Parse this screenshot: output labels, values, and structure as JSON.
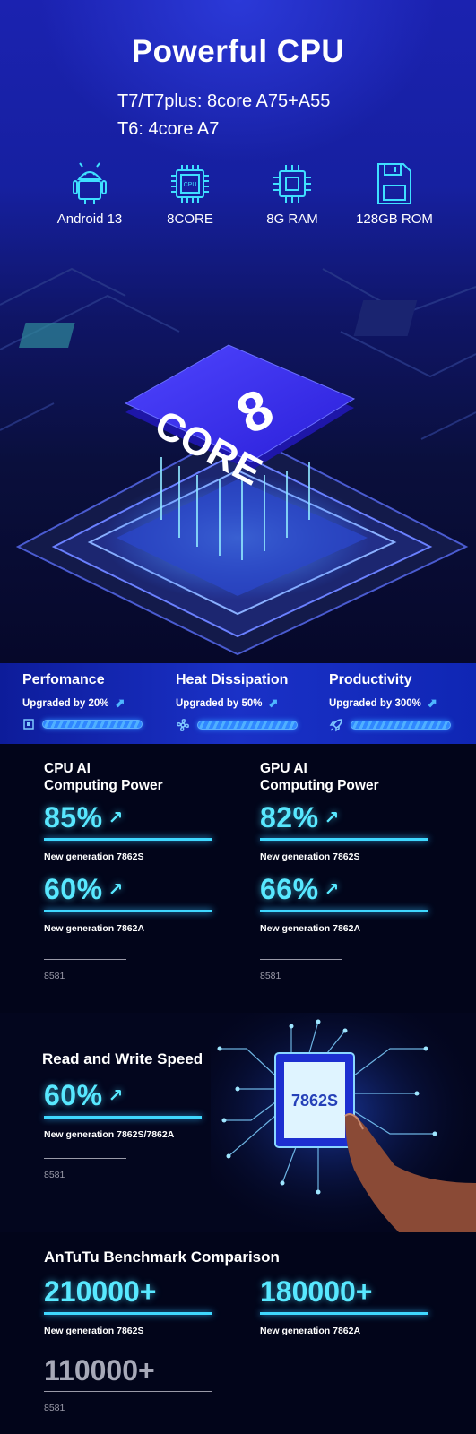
{
  "hero": {
    "title": "Powerful CPU",
    "line1": "T7/T7plus: 8core A75+A55",
    "line2": "T6: 4core A7",
    "specs": [
      {
        "icon": "android-icon",
        "label": "Android 13"
      },
      {
        "icon": "cpu-chip-icon",
        "label": "8CORE",
        "chip_text": "CPU"
      },
      {
        "icon": "ram-chip-icon",
        "label": "8G RAM"
      },
      {
        "icon": "sd-card-icon",
        "label": "128GB ROM"
      }
    ],
    "chip_number": "8",
    "chip_word": "CORE"
  },
  "band": [
    {
      "title": "Perfomance",
      "sub": "Upgraded by 20%",
      "icon": "chip-icon"
    },
    {
      "title": "Heat Dissipation",
      "sub": "Upgraded by 50%",
      "icon": "fan-icon"
    },
    {
      "title": "Productivity",
      "sub": "Upgraded by 300%",
      "icon": "rocket-icon"
    }
  ],
  "ai": {
    "cpu": {
      "title1": "CPU AI",
      "title2": "Computing Power",
      "v1": "85%",
      "l1": "New generation 7862S",
      "v2": "60%",
      "l2": "New generation 7862A",
      "l3": "8581"
    },
    "gpu": {
      "title1": "GPU AI",
      "title2": "Computing Power",
      "v1": "82%",
      "l1": "New generation 7862S",
      "v2": "66%",
      "l2": "New generation 7862A",
      "l3": "8581"
    }
  },
  "rw": {
    "title": "Read and Write Speed",
    "value": "60%",
    "label": "New generation 7862S/7862A",
    "baseline": "8581",
    "chip_text": "7862S"
  },
  "antutu": {
    "title": "AnTuTu Benchmark Comparison",
    "v1": "210000+",
    "l1": "New generation 7862S",
    "v2": "180000+",
    "l2": "New generation 7862A",
    "v3": "110000+",
    "l3": "8581"
  },
  "colors": {
    "accent_cyan": "#58e8ff",
    "hero_blue": "#1b22b0",
    "band_blue": "#1a31c7",
    "background": "#02051a"
  }
}
